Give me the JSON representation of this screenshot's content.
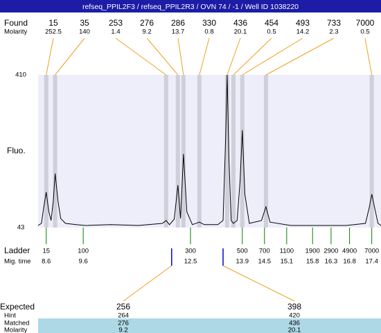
{
  "chart_data": {
    "type": "electropherogram",
    "title": "refseq_PPIL2F3 / refseq_PPIL2R3 / OVN 74 / -1 / Well ID 1038220",
    "found_label": "Found",
    "molarity_label": "Molarity",
    "y_label": "Fluo.",
    "ladder_label": "Ladder",
    "mig_time_label": "Mig. time",
    "ylim": [
      43,
      410
    ],
    "yticks": [
      43,
      410
    ],
    "xlim": [
      8.38,
      17.65
    ],
    "found": [
      {
        "size": 15,
        "molarity": 252.5,
        "time": 8.6
      },
      {
        "size": 35,
        "molarity": 140,
        "time": 8.84
      },
      {
        "size": 253,
        "molarity": 1.4,
        "time": 11.84
      },
      {
        "size": 276,
        "molarity": 9.2,
        "time": 12.16
      },
      {
        "size": 286,
        "molarity": 13.7,
        "time": 12.31
      },
      {
        "size": 330,
        "molarity": 0.8,
        "time": 12.74
      },
      {
        "size": 436,
        "molarity": 20.1,
        "time": 13.49
      },
      {
        "size": 454,
        "molarity": 0.5,
        "time": 13.66
      },
      {
        "size": 493,
        "molarity": 14.2,
        "time": 13.9
      },
      {
        "size": 733,
        "molarity": 2.3,
        "time": 14.54
      },
      {
        "size": 7000,
        "molarity": 0.5,
        "time": 17.4
      }
    ],
    "ladder": [
      {
        "size": 15,
        "time": 8.6
      },
      {
        "size": 100,
        "time": 9.6
      },
      {
        "size": 300,
        "time": 12.5
      },
      {
        "size": 500,
        "time": 13.9
      },
      {
        "size": 700,
        "time": 14.5
      },
      {
        "size": 1100,
        "time": 15.1
      },
      {
        "size": 1900,
        "time": 15.8
      },
      {
        "size": 2900,
        "time": 16.3
      },
      {
        "size": 4900,
        "time": 16.8
      },
      {
        "size": 7000,
        "time": 17.4
      }
    ],
    "trace": {
      "x": [
        8.38,
        8.47,
        8.53,
        8.6,
        8.67,
        8.73,
        8.79,
        8.84,
        8.92,
        8.99,
        9.12,
        9.41,
        9.65,
        10.34,
        11.09,
        11.74,
        11.84,
        11.93,
        12.06,
        12.16,
        12.23,
        12.31,
        12.4,
        12.55,
        12.74,
        12.87,
        13.24,
        13.38,
        13.45,
        13.49,
        13.54,
        13.6,
        13.66,
        13.76,
        13.84,
        13.9,
        13.97,
        14.09,
        14.42,
        14.54,
        14.65,
        15.21,
        16.71,
        17.23,
        17.33,
        17.4,
        17.48,
        17.57,
        17.65
      ],
      "values": [
        48,
        53,
        90,
        128,
        81,
        60,
        106,
        173,
        106,
        65,
        53,
        50,
        48,
        50,
        48,
        53,
        60,
        50,
        63,
        145,
        65,
        220,
        81,
        50,
        56,
        50,
        50,
        60,
        257,
        410,
        207,
        60,
        53,
        60,
        156,
        277,
        123,
        53,
        60,
        93,
        56,
        48,
        48,
        53,
        90,
        123,
        90,
        53,
        48
      ]
    },
    "expected_label": "Expected",
    "hint_label": "Hint",
    "matched_label": "Matched",
    "expected_molarity_label": "Molarity",
    "expected": [
      {
        "size": 256,
        "hint": 264,
        "matched": 276,
        "molarity": 9.2,
        "time": 11.99
      },
      {
        "size": 398,
        "hint": 420,
        "matched": 436,
        "molarity": 20.1,
        "time": 13.38
      }
    ]
  }
}
